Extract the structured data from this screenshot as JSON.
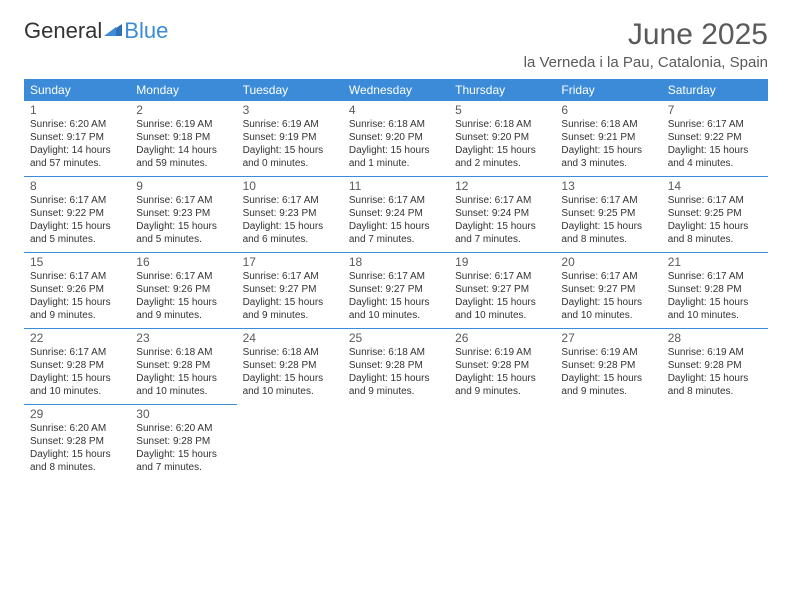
{
  "brand": {
    "part1": "General",
    "part2": "Blue"
  },
  "title": "June 2025",
  "location": "la Verneda i la Pau, Catalonia, Spain",
  "colors": {
    "header_bg": "#3b8bd8",
    "header_text": "#ffffff",
    "rule": "#3b8bd8",
    "body_text": "#333333",
    "muted_text": "#5a5a5a",
    "page_bg": "#ffffff"
  },
  "typography": {
    "title_fontsize": 30,
    "location_fontsize": 15,
    "dow_fontsize": 12,
    "daynum_fontsize": 12,
    "dayinfo_fontsize": 10
  },
  "layout": {
    "columns": 7,
    "rows": 5
  },
  "dow": [
    "Sunday",
    "Monday",
    "Tuesday",
    "Wednesday",
    "Thursday",
    "Friday",
    "Saturday"
  ],
  "weeks": [
    [
      {
        "n": "1",
        "sr": "Sunrise: 6:20 AM",
        "ss": "Sunset: 9:17 PM",
        "dl": "Daylight: 14 hours and 57 minutes."
      },
      {
        "n": "2",
        "sr": "Sunrise: 6:19 AM",
        "ss": "Sunset: 9:18 PM",
        "dl": "Daylight: 14 hours and 59 minutes."
      },
      {
        "n": "3",
        "sr": "Sunrise: 6:19 AM",
        "ss": "Sunset: 9:19 PM",
        "dl": "Daylight: 15 hours and 0 minutes."
      },
      {
        "n": "4",
        "sr": "Sunrise: 6:18 AM",
        "ss": "Sunset: 9:20 PM",
        "dl": "Daylight: 15 hours and 1 minute."
      },
      {
        "n": "5",
        "sr": "Sunrise: 6:18 AM",
        "ss": "Sunset: 9:20 PM",
        "dl": "Daylight: 15 hours and 2 minutes."
      },
      {
        "n": "6",
        "sr": "Sunrise: 6:18 AM",
        "ss": "Sunset: 9:21 PM",
        "dl": "Daylight: 15 hours and 3 minutes."
      },
      {
        "n": "7",
        "sr": "Sunrise: 6:17 AM",
        "ss": "Sunset: 9:22 PM",
        "dl": "Daylight: 15 hours and 4 minutes."
      }
    ],
    [
      {
        "n": "8",
        "sr": "Sunrise: 6:17 AM",
        "ss": "Sunset: 9:22 PM",
        "dl": "Daylight: 15 hours and 5 minutes."
      },
      {
        "n": "9",
        "sr": "Sunrise: 6:17 AM",
        "ss": "Sunset: 9:23 PM",
        "dl": "Daylight: 15 hours and 5 minutes."
      },
      {
        "n": "10",
        "sr": "Sunrise: 6:17 AM",
        "ss": "Sunset: 9:23 PM",
        "dl": "Daylight: 15 hours and 6 minutes."
      },
      {
        "n": "11",
        "sr": "Sunrise: 6:17 AM",
        "ss": "Sunset: 9:24 PM",
        "dl": "Daylight: 15 hours and 7 minutes."
      },
      {
        "n": "12",
        "sr": "Sunrise: 6:17 AM",
        "ss": "Sunset: 9:24 PM",
        "dl": "Daylight: 15 hours and 7 minutes."
      },
      {
        "n": "13",
        "sr": "Sunrise: 6:17 AM",
        "ss": "Sunset: 9:25 PM",
        "dl": "Daylight: 15 hours and 8 minutes."
      },
      {
        "n": "14",
        "sr": "Sunrise: 6:17 AM",
        "ss": "Sunset: 9:25 PM",
        "dl": "Daylight: 15 hours and 8 minutes."
      }
    ],
    [
      {
        "n": "15",
        "sr": "Sunrise: 6:17 AM",
        "ss": "Sunset: 9:26 PM",
        "dl": "Daylight: 15 hours and 9 minutes."
      },
      {
        "n": "16",
        "sr": "Sunrise: 6:17 AM",
        "ss": "Sunset: 9:26 PM",
        "dl": "Daylight: 15 hours and 9 minutes."
      },
      {
        "n": "17",
        "sr": "Sunrise: 6:17 AM",
        "ss": "Sunset: 9:27 PM",
        "dl": "Daylight: 15 hours and 9 minutes."
      },
      {
        "n": "18",
        "sr": "Sunrise: 6:17 AM",
        "ss": "Sunset: 9:27 PM",
        "dl": "Daylight: 15 hours and 10 minutes."
      },
      {
        "n": "19",
        "sr": "Sunrise: 6:17 AM",
        "ss": "Sunset: 9:27 PM",
        "dl": "Daylight: 15 hours and 10 minutes."
      },
      {
        "n": "20",
        "sr": "Sunrise: 6:17 AM",
        "ss": "Sunset: 9:27 PM",
        "dl": "Daylight: 15 hours and 10 minutes."
      },
      {
        "n": "21",
        "sr": "Sunrise: 6:17 AM",
        "ss": "Sunset: 9:28 PM",
        "dl": "Daylight: 15 hours and 10 minutes."
      }
    ],
    [
      {
        "n": "22",
        "sr": "Sunrise: 6:17 AM",
        "ss": "Sunset: 9:28 PM",
        "dl": "Daylight: 15 hours and 10 minutes."
      },
      {
        "n": "23",
        "sr": "Sunrise: 6:18 AM",
        "ss": "Sunset: 9:28 PM",
        "dl": "Daylight: 15 hours and 10 minutes."
      },
      {
        "n": "24",
        "sr": "Sunrise: 6:18 AM",
        "ss": "Sunset: 9:28 PM",
        "dl": "Daylight: 15 hours and 10 minutes."
      },
      {
        "n": "25",
        "sr": "Sunrise: 6:18 AM",
        "ss": "Sunset: 9:28 PM",
        "dl": "Daylight: 15 hours and 9 minutes."
      },
      {
        "n": "26",
        "sr": "Sunrise: 6:19 AM",
        "ss": "Sunset: 9:28 PM",
        "dl": "Daylight: 15 hours and 9 minutes."
      },
      {
        "n": "27",
        "sr": "Sunrise: 6:19 AM",
        "ss": "Sunset: 9:28 PM",
        "dl": "Daylight: 15 hours and 9 minutes."
      },
      {
        "n": "28",
        "sr": "Sunrise: 6:19 AM",
        "ss": "Sunset: 9:28 PM",
        "dl": "Daylight: 15 hours and 8 minutes."
      }
    ],
    [
      {
        "n": "29",
        "sr": "Sunrise: 6:20 AM",
        "ss": "Sunset: 9:28 PM",
        "dl": "Daylight: 15 hours and 8 minutes."
      },
      {
        "n": "30",
        "sr": "Sunrise: 6:20 AM",
        "ss": "Sunset: 9:28 PM",
        "dl": "Daylight: 15 hours and 7 minutes."
      },
      null,
      null,
      null,
      null,
      null
    ]
  ]
}
